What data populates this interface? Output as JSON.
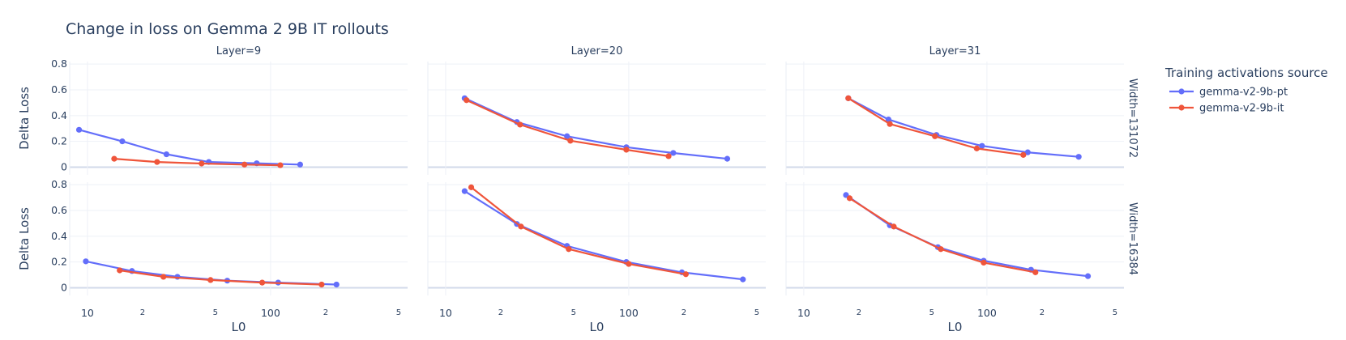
{
  "chart_data": {
    "type": "line",
    "title": "Change in loss on Gemma 2 9B IT rollouts",
    "xlabel": "L0",
    "ylabel": "Delta Loss",
    "x_scale": "log",
    "xlim": [
      8,
      560
    ],
    "ylim": [
      -0.06,
      0.82
    ],
    "x_major_ticks": [
      {
        "value": 10,
        "label": "10"
      },
      {
        "value": 100,
        "label": "100"
      }
    ],
    "x_minor_ticks": [
      {
        "value": 20,
        "label": "2"
      },
      {
        "value": 50,
        "label": "5"
      },
      {
        "value": 200,
        "label": "2"
      },
      {
        "value": 500,
        "label": "5"
      }
    ],
    "y_ticks": [
      {
        "value": 0,
        "label": "0"
      },
      {
        "value": 0.2,
        "label": "0.2"
      },
      {
        "value": 0.4,
        "label": "0.4"
      },
      {
        "value": 0.6,
        "label": "0.6"
      },
      {
        "value": 0.8,
        "label": "0.8"
      }
    ],
    "legend": {
      "title": "Training activations source",
      "position": "right",
      "entries": [
        {
          "name": "gemma-v2-9b-pt",
          "color": "#636efa"
        },
        {
          "name": "gemma-v2-9b-it",
          "color": "#ef553b"
        }
      ]
    },
    "columns": [
      "Layer=9",
      "Layer=20",
      "Layer=31"
    ],
    "rows": [
      "Width=131072",
      "Width=16384"
    ],
    "panels": [
      {
        "row": 0,
        "col": 0,
        "series": [
          {
            "name": "gemma-v2-9b-pt",
            "points": [
              [
                9,
                0.29
              ],
              [
                15.5,
                0.2
              ],
              [
                27,
                0.1
              ],
              [
                46,
                0.04
              ],
              [
                84,
                0.03
              ],
              [
                145,
                0.02
              ]
            ]
          },
          {
            "name": "gemma-v2-9b-it",
            "points": [
              [
                14,
                0.065
              ],
              [
                24,
                0.04
              ],
              [
                42,
                0.028
              ],
              [
                72,
                0.02
              ],
              [
                113,
                0.015
              ]
            ]
          }
        ]
      },
      {
        "row": 0,
        "col": 1,
        "series": [
          {
            "name": "gemma-v2-9b-pt",
            "points": [
              [
                12.7,
                0.535
              ],
              [
                24.5,
                0.35
              ],
              [
                46,
                0.24
              ],
              [
                97,
                0.155
              ],
              [
                175,
                0.11
              ],
              [
                345,
                0.065
              ]
            ]
          },
          {
            "name": "gemma-v2-9b-it",
            "points": [
              [
                13,
                0.52
              ],
              [
                25.5,
                0.33
              ],
              [
                48,
                0.205
              ],
              [
                97,
                0.135
              ],
              [
                165,
                0.085
              ]
            ]
          }
        ]
      },
      {
        "row": 0,
        "col": 2,
        "series": [
          {
            "name": "gemma-v2-9b-pt",
            "points": [
              [
                17.5,
                0.535
              ],
              [
                29,
                0.37
              ],
              [
                53,
                0.25
              ],
              [
                94,
                0.165
              ],
              [
                167,
                0.115
              ],
              [
                317,
                0.08
              ]
            ]
          },
          {
            "name": "gemma-v2-9b-it",
            "points": [
              [
                17.5,
                0.535
              ],
              [
                29.5,
                0.335
              ],
              [
                52,
                0.24
              ],
              [
                88,
                0.145
              ],
              [
                158,
                0.095
              ]
            ]
          }
        ]
      },
      {
        "row": 1,
        "col": 0,
        "series": [
          {
            "name": "gemma-v2-9b-pt",
            "points": [
              [
                9.8,
                0.205
              ],
              [
                17.5,
                0.13
              ],
              [
                31,
                0.085
              ],
              [
                58,
                0.055
              ],
              [
                110,
                0.04
              ],
              [
                229,
                0.025
              ]
            ]
          },
          {
            "name": "gemma-v2-9b-it",
            "points": [
              [
                15,
                0.135
              ],
              [
                26,
                0.085
              ],
              [
                47,
                0.06
              ],
              [
                90,
                0.04
              ],
              [
                190,
                0.025
              ]
            ]
          }
        ]
      },
      {
        "row": 1,
        "col": 1,
        "series": [
          {
            "name": "gemma-v2-9b-pt",
            "points": [
              [
                12.7,
                0.75
              ],
              [
                24.5,
                0.495
              ],
              [
                46,
                0.325
              ],
              [
                97,
                0.2
              ],
              [
                195,
                0.12
              ],
              [
                420,
                0.065
              ]
            ]
          },
          {
            "name": "gemma-v2-9b-it",
            "points": [
              [
                13.8,
                0.78
              ],
              [
                25.8,
                0.475
              ],
              [
                47,
                0.3
              ],
              [
                100,
                0.185
              ],
              [
                205,
                0.105
              ]
            ]
          }
        ]
      },
      {
        "row": 1,
        "col": 2,
        "series": [
          {
            "name": "gemma-v2-9b-pt",
            "points": [
              [
                17,
                0.72
              ],
              [
                29.5,
                0.485
              ],
              [
                54,
                0.315
              ],
              [
                96,
                0.21
              ],
              [
                174,
                0.14
              ],
              [
                356,
                0.09
              ]
            ]
          },
          {
            "name": "gemma-v2-9b-it",
            "points": [
              [
                17.8,
                0.695
              ],
              [
                31,
                0.475
              ],
              [
                56,
                0.3
              ],
              [
                96,
                0.195
              ],
              [
                184,
                0.12
              ]
            ]
          }
        ]
      }
    ]
  }
}
